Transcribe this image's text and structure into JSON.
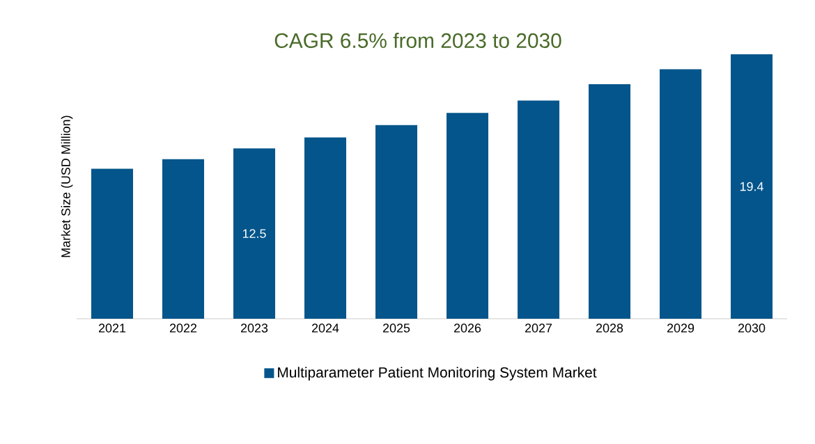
{
  "chart_data": {
    "type": "bar",
    "title": "CAGR 6.5% from 2023 to 2030",
    "ylabel": "Market Size (USD Million)",
    "categories": [
      "2021",
      "2022",
      "2023",
      "2024",
      "2025",
      "2026",
      "2027",
      "2028",
      "2029",
      "2030"
    ],
    "series": [
      {
        "name": "Multiparameter Patient Monitoring System Market",
        "color": "#03558b",
        "values": [
          11.0,
          11.7,
          12.5,
          13.3,
          14.2,
          15.1,
          16.0,
          17.2,
          18.3,
          19.4
        ],
        "value_labels": [
          null,
          null,
          "12.5",
          null,
          null,
          null,
          null,
          null,
          null,
          "19.4"
        ]
      }
    ],
    "legend": "bottom"
  }
}
